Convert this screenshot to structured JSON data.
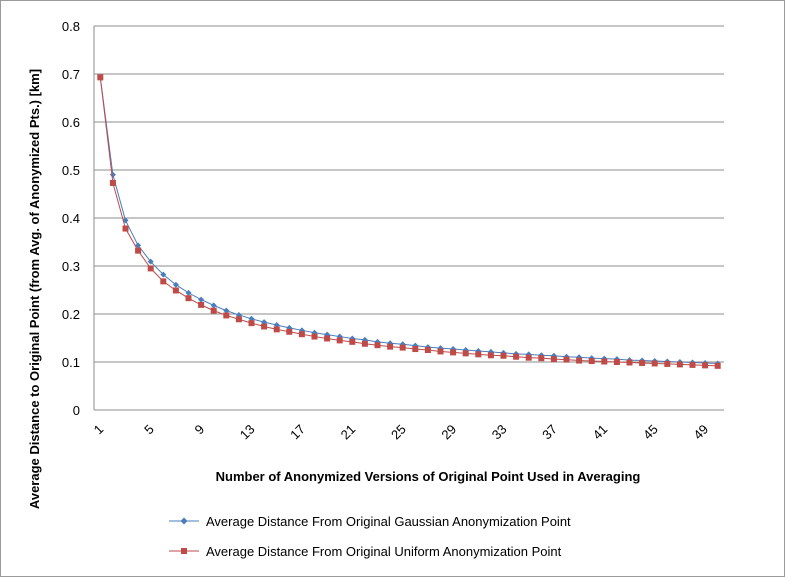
{
  "chart_data": {
    "type": "line",
    "title": "",
    "xlabel": "Number of Anonymized Versions of Original Point Used in Averaging",
    "ylabel": "Average Distance to Original Point (from Avg. of Anonymized Pts.) [km]",
    "xlim": [
      1,
      50
    ],
    "ylim": [
      0,
      0.8
    ],
    "y_ticks": [
      "0",
      "0.1",
      "0.2",
      "0.3",
      "0.4",
      "0.5",
      "0.6",
      "0.7",
      "0.8"
    ],
    "x_ticks": [
      "1",
      "5",
      "9",
      "13",
      "17",
      "21",
      "25",
      "29",
      "33",
      "37",
      "41",
      "45",
      "49"
    ],
    "grid": "horizontal",
    "legend": "bottom",
    "x": [
      1,
      2,
      3,
      4,
      5,
      6,
      7,
      8,
      9,
      10,
      11,
      12,
      13,
      14,
      15,
      16,
      17,
      18,
      19,
      20,
      21,
      22,
      23,
      24,
      25,
      26,
      27,
      28,
      29,
      30,
      31,
      32,
      33,
      34,
      35,
      36,
      37,
      38,
      39,
      40,
      41,
      42,
      43,
      44,
      45,
      46,
      47,
      48,
      49,
      50
    ],
    "series": [
      {
        "name": "Average Distance From Original Gaussian Anonymization Point",
        "color": "#4a7ebb",
        "marker": "diamond",
        "values": [
          0.693,
          0.49,
          0.395,
          0.343,
          0.309,
          0.282,
          0.261,
          0.244,
          0.23,
          0.218,
          0.207,
          0.198,
          0.19,
          0.183,
          0.177,
          0.171,
          0.166,
          0.161,
          0.157,
          0.153,
          0.149,
          0.146,
          0.142,
          0.139,
          0.137,
          0.134,
          0.131,
          0.129,
          0.127,
          0.125,
          0.123,
          0.121,
          0.119,
          0.117,
          0.116,
          0.114,
          0.113,
          0.111,
          0.11,
          0.108,
          0.107,
          0.106,
          0.104,
          0.103,
          0.102,
          0.101,
          0.1,
          0.099,
          0.098,
          0.097
        ]
      },
      {
        "name": "Average Distance From Original Uniform Anonymization Point",
        "color": "#be4b48",
        "marker": "square",
        "values": [
          0.693,
          0.473,
          0.378,
          0.332,
          0.295,
          0.268,
          0.249,
          0.233,
          0.219,
          0.207,
          0.197,
          0.189,
          0.181,
          0.174,
          0.168,
          0.163,
          0.158,
          0.153,
          0.149,
          0.145,
          0.142,
          0.138,
          0.135,
          0.132,
          0.13,
          0.127,
          0.125,
          0.122,
          0.12,
          0.118,
          0.116,
          0.114,
          0.113,
          0.111,
          0.109,
          0.108,
          0.106,
          0.105,
          0.103,
          0.102,
          0.101,
          0.1,
          0.099,
          0.098,
          0.097,
          0.096,
          0.095,
          0.094,
          0.093,
          0.092
        ]
      }
    ]
  }
}
